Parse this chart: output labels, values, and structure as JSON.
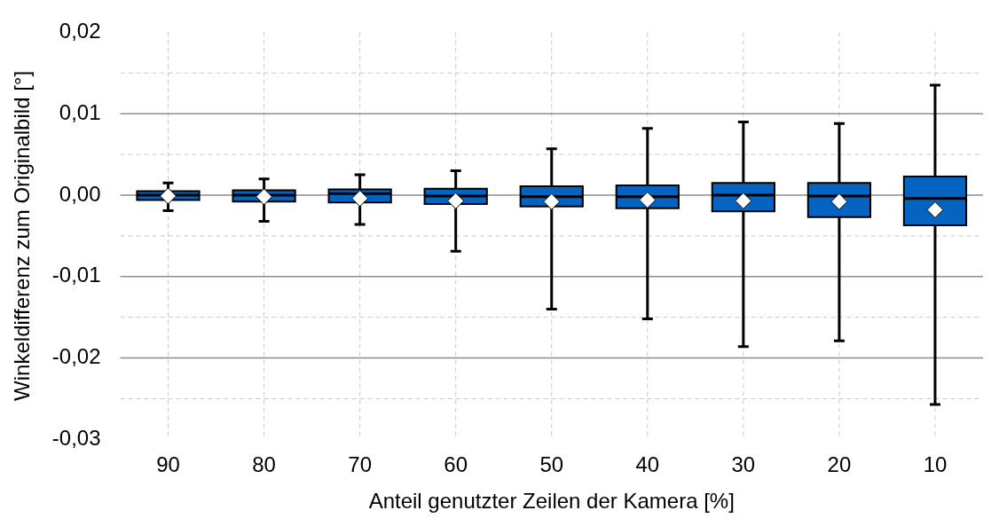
{
  "chart_data": {
    "type": "box",
    "xlabel": "Anteil genutzter Zeilen der Kamera [%]",
    "ylabel": "Winkeldifferenz zum Originalbild [°]",
    "categories": [
      "90",
      "80",
      "70",
      "60",
      "50",
      "40",
      "30",
      "20",
      "10"
    ],
    "color": "#0563c1",
    "marker": "diamond",
    "grid": true,
    "legend": false,
    "ylim": [
      -0.03,
      0.02
    ],
    "yticks": [
      {
        "value": 0.02,
        "label": "0,02"
      },
      {
        "value": 0.015,
        "label": null
      },
      {
        "value": 0.01,
        "label": "0,01"
      },
      {
        "value": 0.005,
        "label": null
      },
      {
        "value": 0,
        "label": "0,00"
      },
      {
        "value": -0.005,
        "label": null
      },
      {
        "value": -0.01,
        "label": "-0,01"
      },
      {
        "value": -0.015,
        "label": null
      },
      {
        "value": -0.02,
        "label": "-0,02"
      },
      {
        "value": -0.025,
        "label": null
      },
      {
        "value": -0.03,
        "label": "-0,03"
      }
    ],
    "boxes": [
      {
        "low": -0.0019,
        "q1": -0.0006,
        "median": 0,
        "q3": 0.0005,
        "high": 0.0015,
        "mean": -0.0001
      },
      {
        "low": -0.0032,
        "q1": -0.0008,
        "median": 0,
        "q3": 0.0006,
        "high": 0.002,
        "mean": -0.0002
      },
      {
        "low": -0.0036,
        "q1": -0.0009,
        "median": 0.0002,
        "q3": 0.0007,
        "high": 0.0025,
        "mean": -0.0004
      },
      {
        "low": -0.0069,
        "q1": -0.0011,
        "median": -0.0001,
        "q3": 0.0008,
        "high": 0.003,
        "mean": -0.0007
      },
      {
        "low": -0.014,
        "q1": -0.0014,
        "median": -0.0002,
        "q3": 0.0011,
        "high": 0.0057,
        "mean": -0.0008
      },
      {
        "low": -0.0152,
        "q1": -0.0016,
        "median": -0.0002,
        "q3": 0.0012,
        "high": 0.0082,
        "mean": -0.0006
      },
      {
        "low": -0.0186,
        "q1": -0.002,
        "median": 0,
        "q3": 0.0015,
        "high": 0.009,
        "mean": -0.0007
      },
      {
        "low": -0.0179,
        "q1": -0.0027,
        "median": -0.0001,
        "q3": 0.0015,
        "high": 0.0088,
        "mean": -0.0008
      },
      {
        "low": -0.0257,
        "q1": -0.0037,
        "median": -0.0004,
        "q3": 0.0023,
        "high": 0.0135,
        "mean": -0.0018
      }
    ]
  }
}
